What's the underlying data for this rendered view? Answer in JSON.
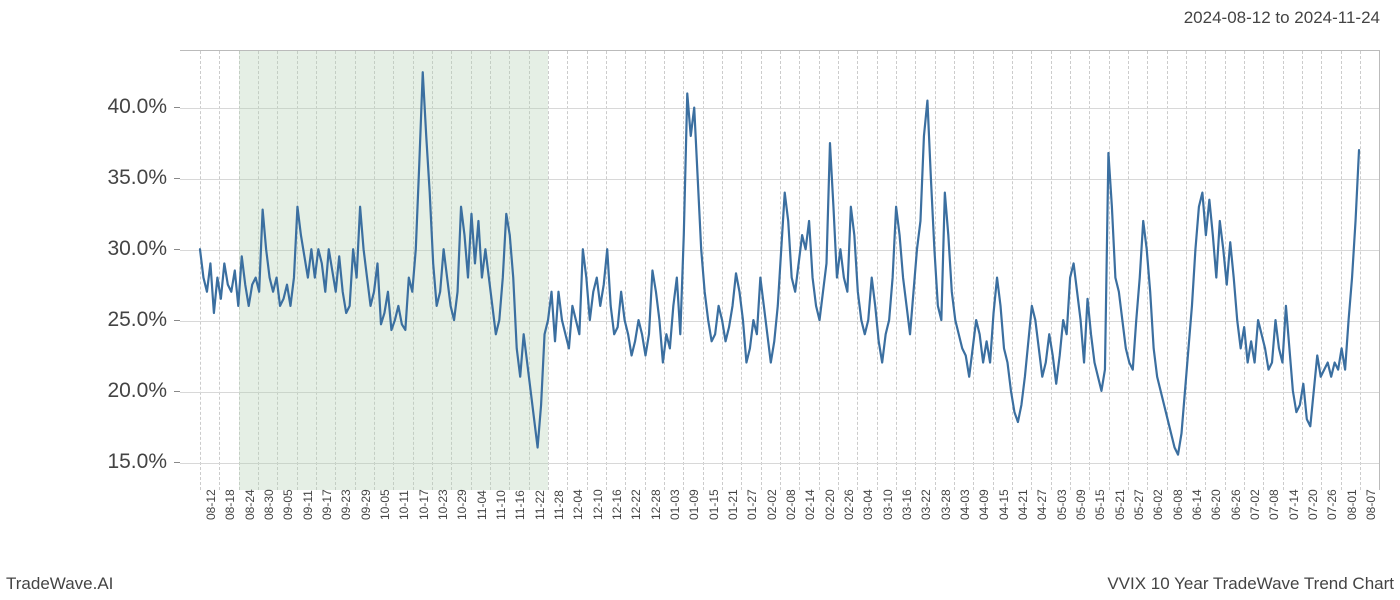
{
  "date_range_text": "2024-08-12 to 2024-11-24",
  "footer_left": "TradeWave.AI",
  "footer_right": "VVIX 10 Year TradeWave Trend Chart",
  "chart": {
    "type": "line",
    "line_color": "#3b6fa0",
    "line_width": 2.2,
    "background_color": "#ffffff",
    "grid_color": "#d8d8d8",
    "vgrid_color": "#cccccc",
    "highlight_fill": "rgba(180,210,180,0.35)",
    "highlight_start_idx": 2,
    "highlight_end_idx": 18,
    "y_axis": {
      "min": 13.0,
      "max": 44.0,
      "ticks": [
        15.0,
        20.0,
        25.0,
        30.0,
        35.0,
        40.0
      ],
      "tick_labels": [
        "15.0%",
        "20.0%",
        "25.0%",
        "30.0%",
        "35.0%",
        "40.0%"
      ],
      "label_fontsize": 21
    },
    "x_axis": {
      "label_fontsize": 12,
      "categories": [
        "08-12",
        "08-18",
        "08-24",
        "08-30",
        "09-05",
        "09-11",
        "09-17",
        "09-23",
        "09-29",
        "10-05",
        "10-11",
        "10-17",
        "10-23",
        "10-29",
        "11-04",
        "11-10",
        "11-16",
        "11-22",
        "11-28",
        "12-04",
        "12-10",
        "12-16",
        "12-22",
        "12-28",
        "01-03",
        "01-09",
        "01-15",
        "01-21",
        "01-27",
        "02-02",
        "02-08",
        "02-14",
        "02-20",
        "02-26",
        "03-04",
        "03-10",
        "03-16",
        "03-22",
        "03-28",
        "04-03",
        "04-09",
        "04-15",
        "04-21",
        "04-27",
        "05-03",
        "05-09",
        "05-15",
        "05-21",
        "05-27",
        "06-02",
        "06-08",
        "06-14",
        "06-20",
        "06-26",
        "07-02",
        "07-08",
        "07-14",
        "07-20",
        "07-26",
        "08-01",
        "08-07"
      ]
    },
    "series": {
      "name": "VVIX trend",
      "values": [
        30.0,
        28.0,
        27.0,
        29.0,
        25.5,
        28.0,
        26.5,
        29.0,
        27.5,
        27.0,
        28.5,
        26.0,
        29.5,
        27.5,
        26.0,
        27.5,
        28.0,
        27.0,
        32.8,
        30.0,
        28.0,
        27.0,
        28.0,
        26.0,
        26.5,
        27.5,
        26.0,
        28.0,
        33.0,
        31.0,
        29.5,
        28.0,
        30.0,
        28.0,
        30.0,
        29.0,
        27.0,
        30.0,
        28.5,
        27.0,
        29.5,
        27.0,
        25.5,
        26.0,
        30.0,
        28.0,
        33.0,
        30.0,
        28.0,
        26.0,
        27.0,
        29.0,
        24.7,
        25.5,
        27.0,
        24.3,
        25.0,
        26.0,
        24.7,
        24.3,
        28.0,
        27.0,
        30.0,
        36.0,
        42.5,
        38.0,
        34.0,
        29.0,
        26.0,
        27.0,
        30.0,
        28.0,
        26.0,
        25.0,
        27.0,
        33.0,
        31.0,
        28.0,
        32.5,
        29.0,
        32.0,
        28.0,
        30.0,
        28.0,
        26.0,
        24.0,
        25.0,
        28.0,
        32.5,
        31.0,
        28.0,
        23.0,
        21.0,
        24.0,
        22.0,
        20.0,
        18.0,
        16.0,
        19.0,
        24.0,
        25.0,
        27.0,
        23.5,
        27.0,
        25.0,
        24.0,
        23.0,
        26.0,
        25.0,
        24.0,
        30.0,
        28.0,
        25.0,
        27.0,
        28.0,
        26.0,
        27.5,
        30.0,
        26.0,
        24.0,
        24.5,
        27.0,
        25.0,
        24.0,
        22.5,
        23.5,
        25.0,
        24.0,
        22.5,
        24.0,
        28.5,
        27.0,
        25.0,
        22.0,
        24.0,
        23.0,
        26.0,
        28.0,
        24.0,
        31.0,
        41.0,
        38.0,
        40.0,
        35.0,
        30.0,
        27.0,
        25.0,
        23.5,
        24.0,
        26.0,
        25.0,
        23.5,
        24.5,
        26.0,
        28.3,
        27.0,
        25.0,
        22.0,
        23.0,
        25.0,
        24.0,
        28.0,
        26.0,
        24.0,
        22.0,
        23.5,
        26.0,
        30.0,
        34.0,
        32.0,
        28.0,
        27.0,
        29.0,
        31.0,
        30.0,
        32.0,
        28.0,
        26.0,
        25.0,
        27.0,
        29.0,
        37.5,
        33.0,
        28.0,
        30.0,
        28.0,
        27.0,
        33.0,
        31.0,
        27.0,
        25.0,
        24.0,
        25.0,
        28.0,
        26.0,
        23.5,
        22.0,
        24.0,
        25.0,
        28.0,
        33.0,
        31.0,
        28.0,
        26.0,
        24.0,
        27.0,
        30.0,
        32.0,
        38.0,
        40.5,
        35.0,
        30.0,
        26.0,
        25.0,
        34.0,
        31.0,
        27.0,
        25.0,
        24.0,
        23.0,
        22.5,
        21.0,
        23.0,
        25.0,
        24.0,
        22.0,
        23.5,
        22.0,
        25.5,
        28.0,
        26.0,
        23.0,
        22.0,
        20.0,
        18.5,
        17.8,
        19.0,
        21.0,
        23.5,
        26.0,
        25.0,
        23.0,
        21.0,
        22.0,
        24.0,
        22.5,
        20.5,
        22.5,
        25.0,
        24.0,
        28.0,
        29.0,
        27.0,
        25.0,
        22.0,
        26.5,
        24.0,
        22.0,
        21.0,
        20.0,
        21.5,
        36.8,
        33.0,
        28.0,
        27.0,
        25.0,
        23.0,
        22.0,
        21.5,
        25.0,
        28.0,
        32.0,
        30.0,
        27.0,
        23.0,
        21.0,
        20.0,
        19.0,
        18.0,
        17.0,
        16.0,
        15.5,
        17.0,
        20.0,
        23.0,
        26.0,
        30.0,
        33.0,
        34.0,
        31.0,
        33.5,
        31.0,
        28.0,
        32.0,
        30.0,
        27.5,
        30.5,
        28.0,
        25.0,
        23.0,
        24.5,
        22.0,
        23.5,
        22.0,
        25.0,
        24.0,
        23.0,
        21.5,
        22.0,
        25.0,
        23.0,
        22.0,
        26.0,
        23.0,
        20.0,
        18.5,
        19.0,
        20.5,
        18.0,
        17.5,
        20.0,
        22.5,
        21.0,
        21.5,
        22.0,
        21.0,
        22.0,
        21.5,
        23.0,
        21.5,
        25.0,
        28.0,
        32.0,
        37.0
      ]
    }
  }
}
